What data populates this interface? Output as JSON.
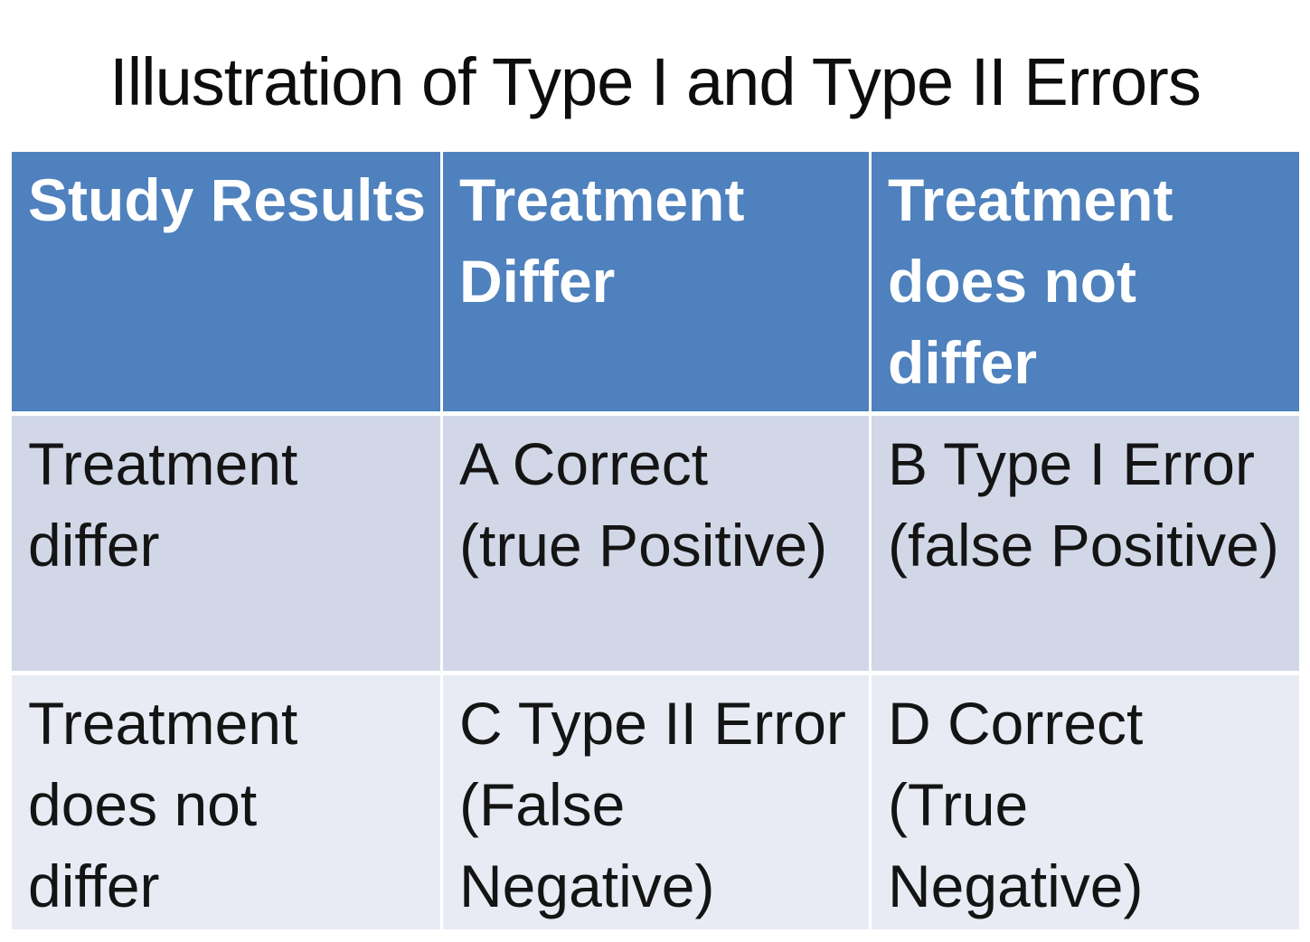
{
  "slide": {
    "title": "Illustration of Type I and Type II Errors"
  },
  "table": {
    "columns": [
      "Study Results",
      "Treatment Differ",
      "Treatment does not differ"
    ],
    "cells": [
      "Study Results",
      "Treatment\nDiffer",
      "Treatment\ndoes not\ndiffer",
      "Treatment\ndiffer",
      "A Correct\n(true Positive)",
      "B Type I Error\n(false Positive)",
      "Treatment\ndoes not\ndiffer",
      "C Type II Error\n(False\nNegative)",
      "D Correct\n(True\nNegative)"
    ],
    "rows": [
      {
        "study_result": "Treatment differ",
        "treatment_differ": "A Correct (true Positive)",
        "treatment_does_not_differ": "B Type I Error (false Positive)"
      },
      {
        "study_result": "Treatment does not differ",
        "treatment_differ": "C Type II Error (False Negative)",
        "treatment_does_not_differ": "D Correct (True Negative)"
      }
    ]
  },
  "colors": {
    "header_background": "#4e81bd",
    "band_row_1": "#d1d7e6",
    "band_row_2": "#e9ebf4",
    "gridline": "#ffffff",
    "header_text": "#ffffff",
    "body_text": "#141414",
    "title_text": "#0d0d0d",
    "canvas": "#ffffff"
  }
}
